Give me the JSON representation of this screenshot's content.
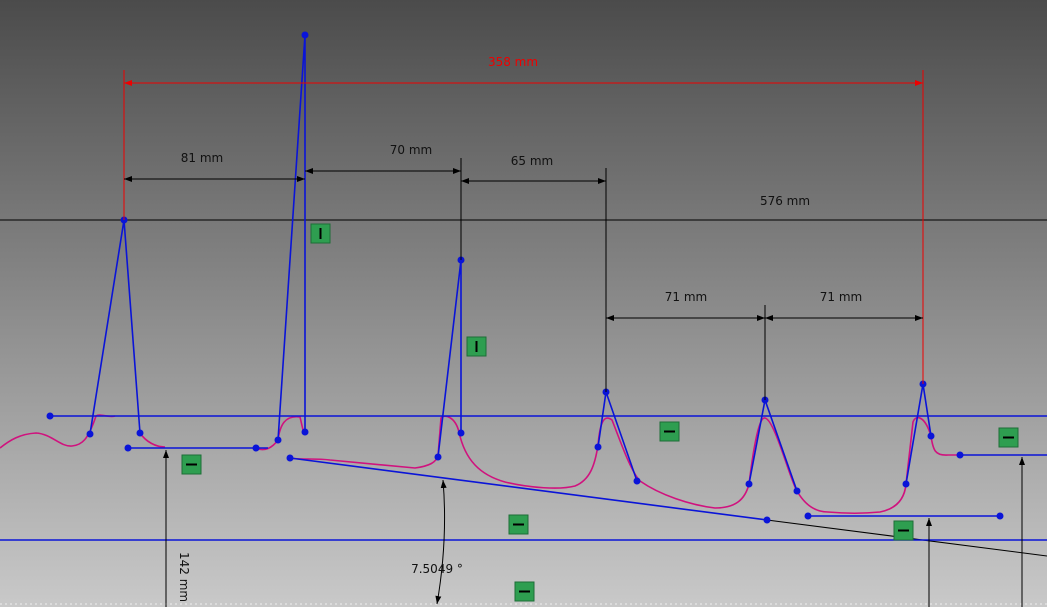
{
  "dimensions": {
    "overall_width": "358 mm",
    "gap_1": "81 mm",
    "gap_2": "70 mm",
    "gap_3": "65 mm",
    "baseline": "576 mm",
    "gap_4": "71 mm",
    "gap_5": "71 mm",
    "height": "142 mm",
    "angle": "7.5049 °"
  }
}
